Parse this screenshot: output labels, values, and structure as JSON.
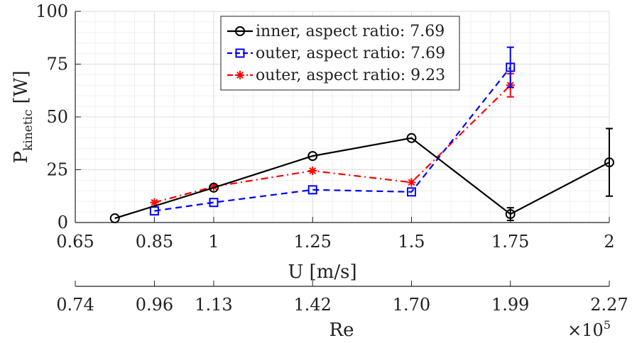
{
  "chart_data": {
    "type": "line",
    "title": "",
    "xlabel": "U [m/s]",
    "ylabel_main": "P",
    "ylabel_sub": "kinetic",
    "ylabel_unit": "[W]",
    "xlim": [
      0.65,
      2.0
    ],
    "ylim": [
      0,
      100
    ],
    "grid": true,
    "legend_position": "top-center",
    "x_ticks": [
      0.65,
      0.85,
      1.0,
      1.25,
      1.5,
      1.75,
      2.0
    ],
    "x_tick_labels": [
      "0.65",
      "0.85",
      "1",
      "1.25",
      "1.5",
      "1.75",
      "2"
    ],
    "y_ticks": [
      0,
      25,
      50,
      75,
      100
    ],
    "y_tick_labels": [
      "0",
      "25",
      "50",
      "75",
      "100"
    ],
    "secondary_axis": {
      "label": "Re",
      "multiplier_base": "×10",
      "multiplier_exp": "5",
      "tick_positions_U": [
        0.65,
        0.85,
        1.0,
        1.25,
        1.5,
        1.75,
        2.0
      ],
      "tick_labels": [
        "0.74",
        "0.96",
        "1.13",
        "1.42",
        "1.70",
        "1.99",
        "2.27"
      ]
    },
    "series": [
      {
        "name": "inner, aspect ratio: 7.69",
        "color": "#000000",
        "line": "solid",
        "marker": "circle",
        "x": [
          0.75,
          1.0,
          1.25,
          1.5,
          1.75,
          2.0
        ],
        "y": [
          2,
          16.5,
          31.5,
          40,
          4,
          28.5
        ],
        "error": [
          0,
          0,
          0,
          0,
          3,
          16
        ]
      },
      {
        "name": "outer, aspect ratio: 7.69",
        "color": "#0000ff",
        "line": "dashed",
        "marker": "square",
        "x": [
          0.85,
          1.0,
          1.25,
          1.5,
          1.75
        ],
        "y": [
          5.5,
          9.5,
          15.5,
          14.5,
          73.5
        ],
        "error": [
          0,
          0,
          0,
          0,
          9.5
        ]
      },
      {
        "name": "outer, aspect ratio: 9.23",
        "color": "#ff0000",
        "line": "dashdot",
        "marker": "asterisk",
        "x": [
          0.85,
          1.0,
          1.25,
          1.5,
          1.75
        ],
        "y": [
          9.5,
          17,
          24.5,
          19,
          65
        ],
        "error": [
          0,
          0,
          0,
          0,
          5.5
        ]
      }
    ]
  }
}
